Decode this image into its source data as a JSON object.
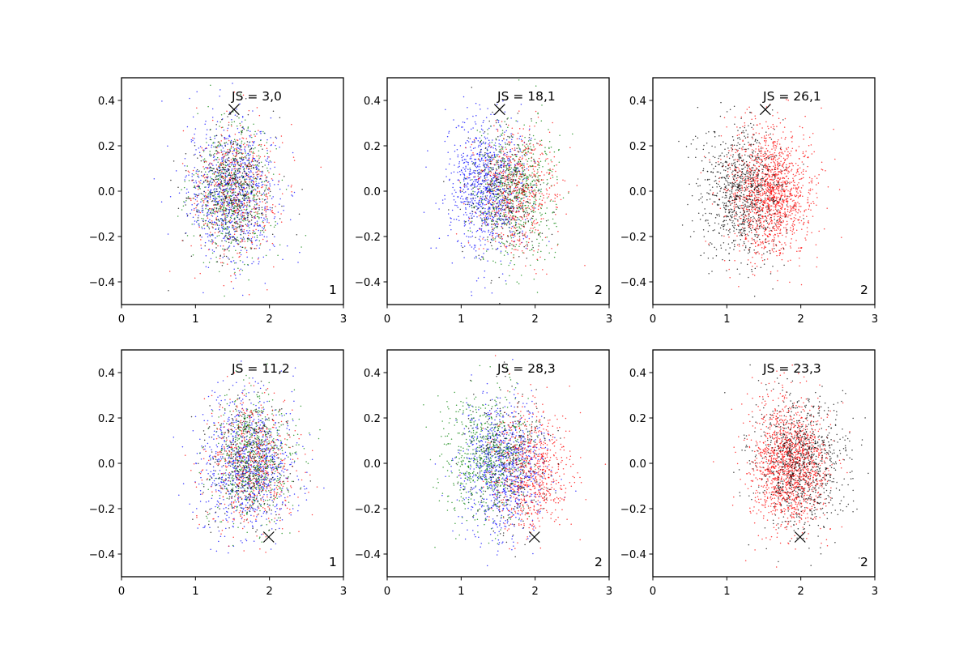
{
  "figure": {
    "background": "#ffffff"
  },
  "chart_data": [
    {
      "type": "scatter",
      "annotation": "JS = 3,0",
      "corner_label": "1",
      "xlim": [
        0,
        3
      ],
      "ylim": [
        -0.5,
        0.5
      ],
      "xticks": [
        "0",
        "1",
        "2",
        "3"
      ],
      "yticks": [
        "−0.4",
        "−0.2",
        "0.0",
        "0.2",
        "0.4"
      ],
      "grid": false,
      "marker": {
        "x": 1.52,
        "y": 0.36,
        "symbol": "x"
      },
      "series": [
        {
          "color": "#0000ff",
          "center": [
            1.5,
            0.0
          ],
          "spread": [
            0.55,
            0.2
          ],
          "count": 900
        },
        {
          "color": "#008000",
          "center": [
            1.5,
            0.0
          ],
          "spread": [
            0.5,
            0.19
          ],
          "count": 600
        },
        {
          "color": "#ff0000",
          "center": [
            1.55,
            0.0
          ],
          "spread": [
            0.55,
            0.2
          ],
          "count": 500
        },
        {
          "color": "#000000",
          "center": [
            1.5,
            0.0
          ],
          "spread": [
            0.5,
            0.19
          ],
          "count": 400
        }
      ]
    },
    {
      "type": "scatter",
      "annotation": "JS = 18,1",
      "corner_label": "2",
      "xlim": [
        0,
        3
      ],
      "ylim": [
        -0.5,
        0.5
      ],
      "xticks": [
        "0",
        "1",
        "2",
        "3"
      ],
      "yticks": [
        "−0.4",
        "−0.2",
        "0.0",
        "0.2",
        "0.4"
      ],
      "grid": false,
      "marker": {
        "x": 1.52,
        "y": 0.36,
        "symbol": "x"
      },
      "series": [
        {
          "color": "#0000ff",
          "center": [
            1.35,
            0.02
          ],
          "spread": [
            0.5,
            0.19
          ],
          "count": 950
        },
        {
          "color": "#008000",
          "center": [
            1.75,
            0.0
          ],
          "spread": [
            0.5,
            0.19
          ],
          "count": 650
        },
        {
          "color": "#ff0000",
          "center": [
            1.75,
            0.0
          ],
          "spread": [
            0.5,
            0.19
          ],
          "count": 600
        },
        {
          "color": "#000000",
          "center": [
            1.55,
            0.0
          ],
          "spread": [
            0.5,
            0.19
          ],
          "count": 300
        }
      ]
    },
    {
      "type": "scatter",
      "annotation": "JS = 26,1",
      "corner_label": "2",
      "xlim": [
        0,
        3
      ],
      "ylim": [
        -0.5,
        0.5
      ],
      "xticks": [
        "0",
        "1",
        "2",
        "3"
      ],
      "yticks": [
        "−0.4",
        "−0.2",
        "0.0",
        "0.2",
        "0.4"
      ],
      "grid": false,
      "marker": {
        "x": 1.52,
        "y": 0.36,
        "symbol": "x"
      },
      "series": [
        {
          "color": "#ff0000",
          "center": [
            1.6,
            0.0
          ],
          "spread": [
            0.5,
            0.19
          ],
          "count": 1500
        },
        {
          "color": "#000000",
          "center": [
            1.2,
            0.0
          ],
          "spread": [
            0.5,
            0.19
          ],
          "count": 900
        }
      ]
    },
    {
      "type": "scatter",
      "annotation": "JS = 11,2",
      "corner_label": "1",
      "xlim": [
        0,
        3
      ],
      "ylim": [
        -0.5,
        0.5
      ],
      "xticks": [
        "0",
        "1",
        "2",
        "3"
      ],
      "yticks": [
        "−0.4",
        "−0.2",
        "0.0",
        "0.2",
        "0.4"
      ],
      "grid": false,
      "marker": {
        "x": 1.99,
        "y": -0.325,
        "symbol": "x"
      },
      "series": [
        {
          "color": "#0000ff",
          "center": [
            1.7,
            0.0
          ],
          "spread": [
            0.55,
            0.2
          ],
          "count": 900
        },
        {
          "color": "#008000",
          "center": [
            1.75,
            0.02
          ],
          "spread": [
            0.5,
            0.19
          ],
          "count": 650
        },
        {
          "color": "#ff0000",
          "center": [
            1.75,
            0.0
          ],
          "spread": [
            0.55,
            0.2
          ],
          "count": 550
        },
        {
          "color": "#000000",
          "center": [
            1.7,
            0.0
          ],
          "spread": [
            0.5,
            0.19
          ],
          "count": 350
        }
      ]
    },
    {
      "type": "scatter",
      "annotation": "JS = 28,3",
      "corner_label": "2",
      "xlim": [
        0,
        3
      ],
      "ylim": [
        -0.5,
        0.5
      ],
      "xticks": [
        "0",
        "1",
        "2",
        "3"
      ],
      "yticks": [
        "−0.4",
        "−0.2",
        "0.0",
        "0.2",
        "0.4"
      ],
      "grid": false,
      "marker": {
        "x": 1.99,
        "y": -0.325,
        "symbol": "x"
      },
      "series": [
        {
          "color": "#0000ff",
          "center": [
            1.55,
            -0.02
          ],
          "spread": [
            0.5,
            0.19
          ],
          "count": 900
        },
        {
          "color": "#008000",
          "center": [
            1.35,
            0.03
          ],
          "spread": [
            0.5,
            0.19
          ],
          "count": 700
        },
        {
          "color": "#ff0000",
          "center": [
            1.95,
            -0.03
          ],
          "spread": [
            0.45,
            0.19
          ],
          "count": 700
        },
        {
          "color": "#000000",
          "center": [
            1.65,
            0.0
          ],
          "spread": [
            0.5,
            0.19
          ],
          "count": 300
        }
      ]
    },
    {
      "type": "scatter",
      "annotation": "JS = 23,3",
      "corner_label": "2",
      "xlim": [
        0,
        3
      ],
      "ylim": [
        -0.5,
        0.5
      ],
      "xticks": [
        "0",
        "1",
        "2",
        "3"
      ],
      "yticks": [
        "−0.4",
        "−0.2",
        "0.0",
        "0.2",
        "0.4"
      ],
      "grid": false,
      "marker": {
        "x": 1.99,
        "y": -0.325,
        "symbol": "x"
      },
      "series": [
        {
          "color": "#ff0000",
          "center": [
            1.85,
            0.0
          ],
          "spread": [
            0.45,
            0.19
          ],
          "count": 1500
        },
        {
          "color": "#000000",
          "center": [
            2.0,
            0.0
          ],
          "spread": [
            0.55,
            0.19
          ],
          "count": 900
        }
      ]
    }
  ]
}
